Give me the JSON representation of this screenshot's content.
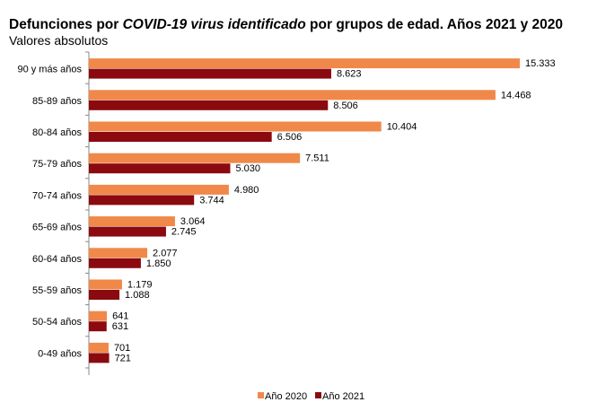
{
  "chart_data": {
    "type": "bar",
    "orientation": "horizontal",
    "title_parts": [
      "Defunciones por ",
      "COVID-19 virus identificado",
      " por grupos de edad. Años 2021 y 2020"
    ],
    "subtitle": "Valores absolutos",
    "categories": [
      "90 y más años",
      "85-89 años",
      "80-84 años",
      "75-79 años",
      "70-74 años",
      "65-69 años",
      "60-64 años",
      "55-59 años",
      "50-54 años",
      "0-49 años"
    ],
    "series": [
      {
        "name": "Año 2020",
        "color": "#F0884A",
        "values": [
          15333,
          14468,
          10404,
          7511,
          4980,
          3064,
          2077,
          1179,
          641,
          701
        ]
      },
      {
        "name": "Año 2021",
        "color": "#8B0A10",
        "values": [
          8623,
          8506,
          6506,
          5030,
          3744,
          2745,
          1850,
          1088,
          631,
          721
        ]
      }
    ],
    "xlim": [
      0,
      15333
    ],
    "grid": false,
    "legend_position": "bottom",
    "number_format": "thousands separator '.'"
  }
}
